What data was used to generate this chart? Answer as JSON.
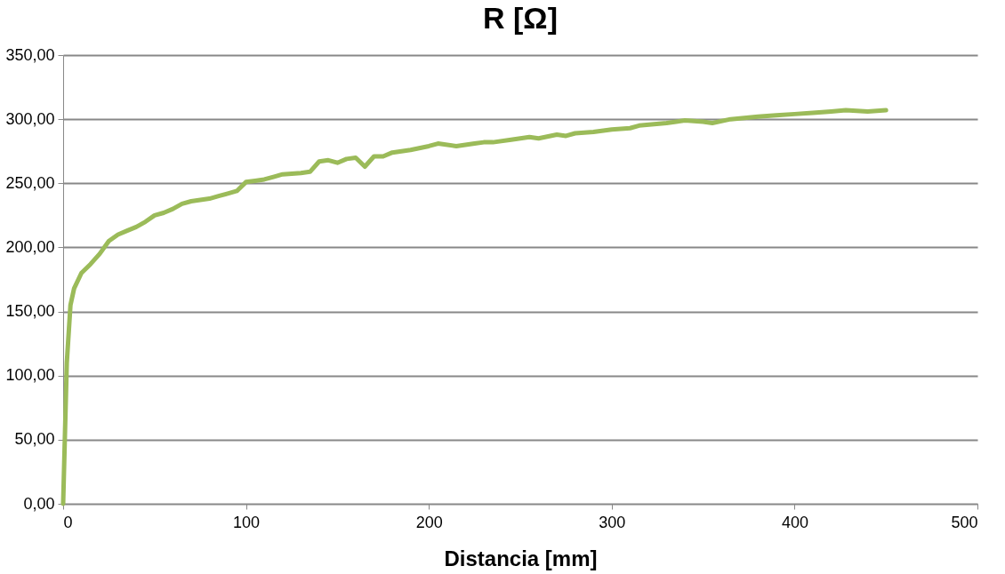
{
  "chart_data": {
    "type": "line",
    "title": "R [Ω]",
    "xlabel": "Distancia [mm]",
    "x": [
      0,
      2,
      4,
      6,
      10,
      15,
      20,
      25,
      30,
      35,
      40,
      45,
      50,
      55,
      60,
      65,
      70,
      75,
      80,
      85,
      90,
      95,
      100,
      105,
      110,
      115,
      120,
      130,
      135,
      140,
      145,
      150,
      155,
      160,
      165,
      170,
      175,
      180,
      190,
      200,
      205,
      215,
      225,
      230,
      235,
      245,
      255,
      260,
      270,
      275,
      280,
      290,
      300,
      310,
      315,
      330,
      340,
      350,
      355,
      365,
      380,
      390,
      400,
      410,
      420,
      428,
      440,
      450
    ],
    "series": [
      {
        "color": "#9bbb59",
        "values": [
          0,
          110,
          155,
          168,
          180,
          187,
          195,
          205,
          210,
          213,
          216,
          220,
          225,
          227,
          230,
          234,
          236,
          237,
          238,
          240,
          242,
          244,
          251,
          252,
          253,
          255,
          257,
          258,
          259,
          267,
          268,
          266,
          269,
          270,
          263,
          271,
          271,
          274,
          276,
          279,
          281,
          279,
          281,
          282,
          282,
          284,
          286,
          285,
          288,
          287,
          289,
          290,
          292,
          293,
          295,
          297,
          299,
          298,
          297,
          300,
          302,
          303,
          304,
          305,
          306,
          307,
          306,
          307
        ]
      }
    ],
    "xlim": [
      0,
      500
    ],
    "xticks": [
      0,
      100,
      200,
      300,
      400,
      500
    ],
    "ylim": [
      0,
      350
    ],
    "yticks": [
      {
        "value": 0,
        "label": "0,00"
      },
      {
        "value": 50,
        "label": "50,00"
      },
      {
        "value": 100,
        "label": "100,00"
      },
      {
        "value": 150,
        "label": "150,00"
      },
      {
        "value": 200,
        "label": "200,00"
      },
      {
        "value": 250,
        "label": "250,00"
      },
      {
        "value": 300,
        "label": "300,00"
      },
      {
        "value": 350,
        "label": "350,00"
      }
    ],
    "grid": "y",
    "marker": "none",
    "line_style": "solid"
  }
}
